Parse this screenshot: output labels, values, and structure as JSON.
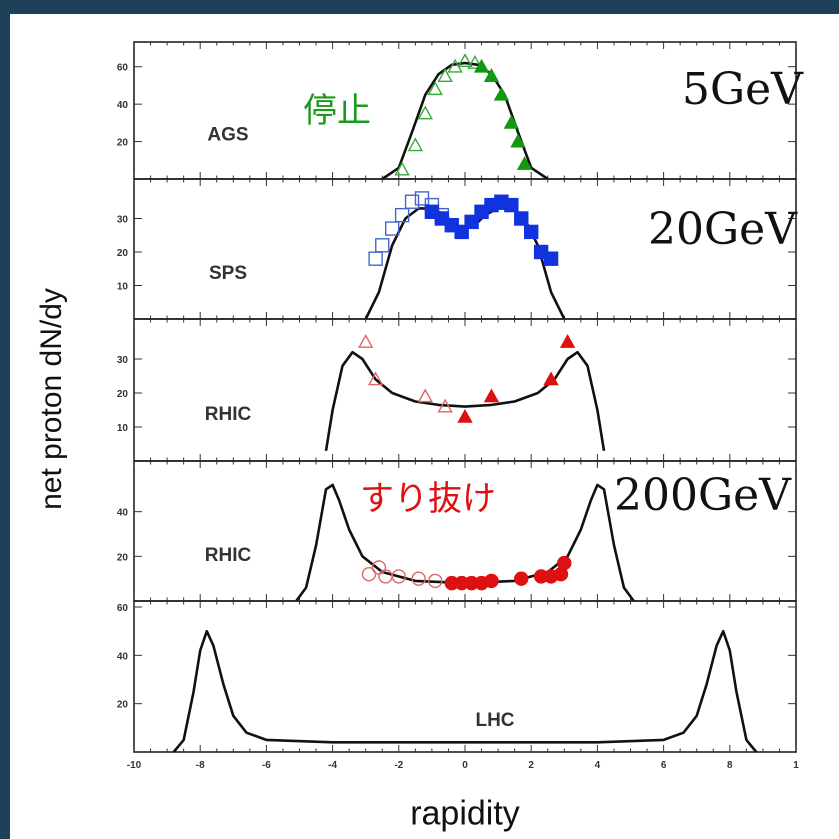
{
  "chart_data": {
    "type": "line",
    "xlabel": "rapidity",
    "ylabel": "net proton dN/dy",
    "x_ticks": [
      "-10",
      "-8",
      "-6",
      "-4",
      "-2",
      "0",
      "2",
      "4",
      "6",
      "8",
      "1"
    ],
    "annotations": {
      "e5": "5GeV",
      "e20": "20GeV",
      "e200": "200GeV",
      "stop": "停止",
      "through": "すり抜け",
      "stop_color": "#1a9a1a",
      "through_color": "#e01010"
    },
    "panels": [
      {
        "label": "AGS",
        "ylim": [
          0,
          70
        ],
        "y_ticks": [
          20,
          40,
          60
        ],
        "curve": [
          [
            -2.5,
            0
          ],
          [
            -2,
            6
          ],
          [
            -1.6,
            25
          ],
          [
            -1.2,
            45
          ],
          [
            -0.8,
            56
          ],
          [
            -0.4,
            61
          ],
          [
            0,
            62
          ],
          [
            0.4,
            61
          ],
          [
            0.8,
            56
          ],
          [
            1.2,
            45
          ],
          [
            1.6,
            25
          ],
          [
            2,
            6
          ],
          [
            2.5,
            0
          ]
        ],
        "open_points": [
          [
            -1.9,
            5
          ],
          [
            -1.5,
            18
          ],
          [
            -1.2,
            35
          ],
          [
            -0.9,
            48
          ],
          [
            -0.6,
            55
          ],
          [
            -0.3,
            60
          ],
          [
            0,
            63
          ],
          [
            0.3,
            62
          ]
        ],
        "filled_points": [
          [
            0.5,
            60
          ],
          [
            0.8,
            55
          ],
          [
            1.1,
            45
          ],
          [
            1.4,
            30
          ],
          [
            1.6,
            20
          ],
          [
            1.8,
            8
          ]
        ],
        "marker": "triangle",
        "open_color": "#3aa83a",
        "filled_color": "#119911"
      },
      {
        "label": "SPS",
        "ylim": [
          0,
          40
        ],
        "y_ticks": [
          10,
          20,
          30
        ],
        "curve": [
          [
            -3,
            0
          ],
          [
            -2.6,
            8
          ],
          [
            -2.2,
            22
          ],
          [
            -1.8,
            30
          ],
          [
            -1.4,
            33
          ],
          [
            -1,
            33
          ],
          [
            -0.6,
            31
          ],
          [
            -0.3,
            28
          ],
          [
            0,
            27
          ],
          [
            0.3,
            28
          ],
          [
            0.6,
            31
          ],
          [
            1,
            33
          ],
          [
            1.4,
            33
          ],
          [
            1.8,
            30
          ],
          [
            2.2,
            22
          ],
          [
            2.6,
            8
          ],
          [
            3,
            0
          ]
        ],
        "open_points": [
          [
            -2.7,
            18
          ],
          [
            -2.5,
            22
          ],
          [
            -2.2,
            27
          ],
          [
            -1.9,
            31
          ],
          [
            -1.6,
            35
          ],
          [
            -1.3,
            36
          ],
          [
            -1,
            34
          ],
          [
            -0.7,
            31
          ]
        ],
        "filled_points": [
          [
            -1,
            32
          ],
          [
            -0.7,
            30
          ],
          [
            -0.4,
            28
          ],
          [
            -0.1,
            26
          ],
          [
            0.2,
            29
          ],
          [
            0.5,
            32
          ],
          [
            0.8,
            34
          ],
          [
            1.1,
            35
          ],
          [
            1.4,
            34
          ],
          [
            1.7,
            30
          ],
          [
            2,
            26
          ],
          [
            2.3,
            20
          ],
          [
            2.6,
            18
          ]
        ],
        "marker": "square",
        "open_color": "#4466cc",
        "filled_color": "#1133dd"
      },
      {
        "label": "RHIC",
        "ylim": [
          0,
          40
        ],
        "y_ticks": [
          10,
          20,
          30
        ],
        "curve": [
          [
            -4.2,
            3
          ],
          [
            -4,
            15
          ],
          [
            -3.7,
            28
          ],
          [
            -3.4,
            32
          ],
          [
            -3.1,
            30
          ],
          [
            -2.7,
            24
          ],
          [
            -2.2,
            20
          ],
          [
            -1.5,
            17.5
          ],
          [
            -0.8,
            16.5
          ],
          [
            0,
            16
          ],
          [
            0.8,
            16.5
          ],
          [
            1.5,
            17.5
          ],
          [
            2.2,
            20
          ],
          [
            2.7,
            24
          ],
          [
            3.1,
            30
          ],
          [
            3.4,
            32
          ],
          [
            3.7,
            28
          ],
          [
            4,
            15
          ],
          [
            4.2,
            3
          ]
        ],
        "open_points": [
          [
            -3,
            35
          ],
          [
            -2.7,
            24
          ],
          [
            -1.2,
            19
          ],
          [
            -0.6,
            16
          ]
        ],
        "filled_points": [
          [
            0,
            13
          ],
          [
            0.8,
            19
          ],
          [
            2.6,
            24
          ],
          [
            3.1,
            35
          ]
        ],
        "marker": "triangle",
        "open_color": "#dd6666",
        "filled_color": "#dd1111"
      },
      {
        "label": "RHIC",
        "ylim": [
          0,
          60
        ],
        "y_ticks": [
          20,
          40
        ],
        "curve": [
          [
            -5.1,
            0
          ],
          [
            -4.8,
            6
          ],
          [
            -4.5,
            25
          ],
          [
            -4.2,
            50
          ],
          [
            -4,
            52
          ],
          [
            -3.8,
            45
          ],
          [
            -3.5,
            32
          ],
          [
            -3.1,
            20
          ],
          [
            -2.5,
            13
          ],
          [
            -1.5,
            9
          ],
          [
            0,
            8
          ],
          [
            1.5,
            9
          ],
          [
            2.5,
            13
          ],
          [
            3.1,
            20
          ],
          [
            3.5,
            32
          ],
          [
            3.8,
            45
          ],
          [
            4,
            52
          ],
          [
            4.2,
            50
          ],
          [
            4.5,
            25
          ],
          [
            4.8,
            6
          ],
          [
            5.1,
            0
          ]
        ],
        "open_points": [
          [
            -2.9,
            12
          ],
          [
            -2.6,
            15
          ],
          [
            -2.4,
            11
          ],
          [
            -2,
            11
          ],
          [
            -1.4,
            10
          ],
          [
            -0.9,
            9
          ]
        ],
        "filled_points": [
          [
            -0.4,
            8
          ],
          [
            -0.1,
            8
          ],
          [
            0.2,
            8
          ],
          [
            0.5,
            8
          ],
          [
            0.8,
            9
          ],
          [
            1.7,
            10
          ],
          [
            2.3,
            11
          ],
          [
            2.6,
            11
          ],
          [
            2.9,
            12
          ],
          [
            3,
            17
          ]
        ],
        "marker": "circle",
        "open_color": "#dd6666",
        "filled_color": "#dd1111"
      },
      {
        "label": "LHC",
        "ylim": [
          0,
          60
        ],
        "y_ticks": [
          20,
          40,
          60
        ],
        "curve": [
          [
            -8.8,
            0
          ],
          [
            -8.5,
            5
          ],
          [
            -8.2,
            25
          ],
          [
            -8,
            42
          ],
          [
            -7.8,
            50
          ],
          [
            -7.6,
            44
          ],
          [
            -7.3,
            28
          ],
          [
            -7,
            15
          ],
          [
            -6.6,
            8
          ],
          [
            -6,
            5
          ],
          [
            -4,
            4
          ],
          [
            0,
            4
          ],
          [
            4,
            4
          ],
          [
            6,
            5
          ],
          [
            6.6,
            8
          ],
          [
            7,
            15
          ],
          [
            7.3,
            28
          ],
          [
            7.6,
            44
          ],
          [
            7.8,
            50
          ],
          [
            8,
            42
          ],
          [
            8.2,
            25
          ],
          [
            8.5,
            5
          ],
          [
            8.8,
            0
          ]
        ],
        "open_points": [],
        "filled_points": [],
        "marker": "none",
        "open_color": "#888888",
        "filled_color": "#888888"
      }
    ]
  }
}
